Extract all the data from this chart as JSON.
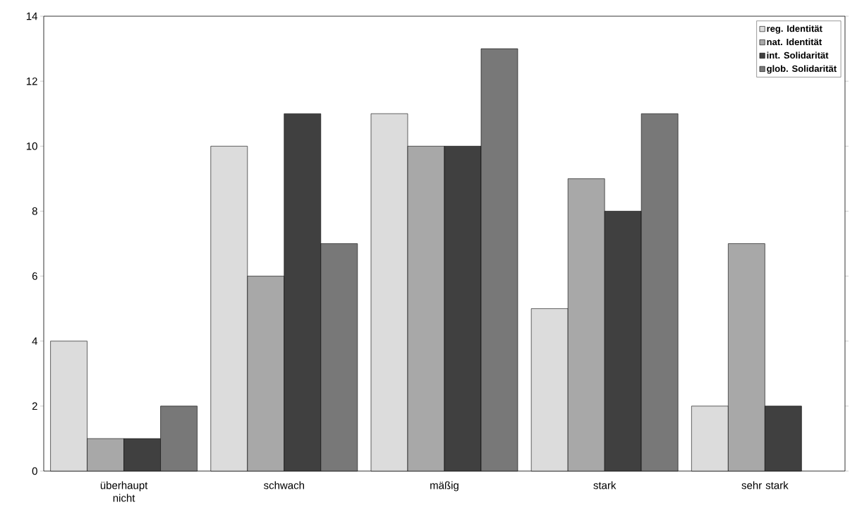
{
  "chart_data": {
    "type": "bar",
    "categories": [
      "überhaupt nicht",
      "schwach",
      "mäßig",
      "stark",
      "sehr stark"
    ],
    "series": [
      {
        "name": "reg. Identität",
        "color": "#dcdcdc",
        "values": [
          4,
          10,
          11,
          5,
          2
        ]
      },
      {
        "name": "nat. Identität",
        "color": "#a8a8a8",
        "values": [
          1,
          6,
          10,
          9,
          7
        ]
      },
      {
        "name": "int. Solidarität",
        "color": "#404040",
        "values": [
          1,
          11,
          10,
          8,
          2
        ]
      },
      {
        "name": "glob. Solidarität",
        "color": "#787878",
        "values": [
          2,
          7,
          13,
          11,
          null
        ]
      }
    ],
    "ylim": [
      0,
      14
    ],
    "yticks": [
      0,
      2,
      4,
      6,
      8,
      10,
      12,
      14
    ],
    "grid": false,
    "legend": "top right"
  }
}
